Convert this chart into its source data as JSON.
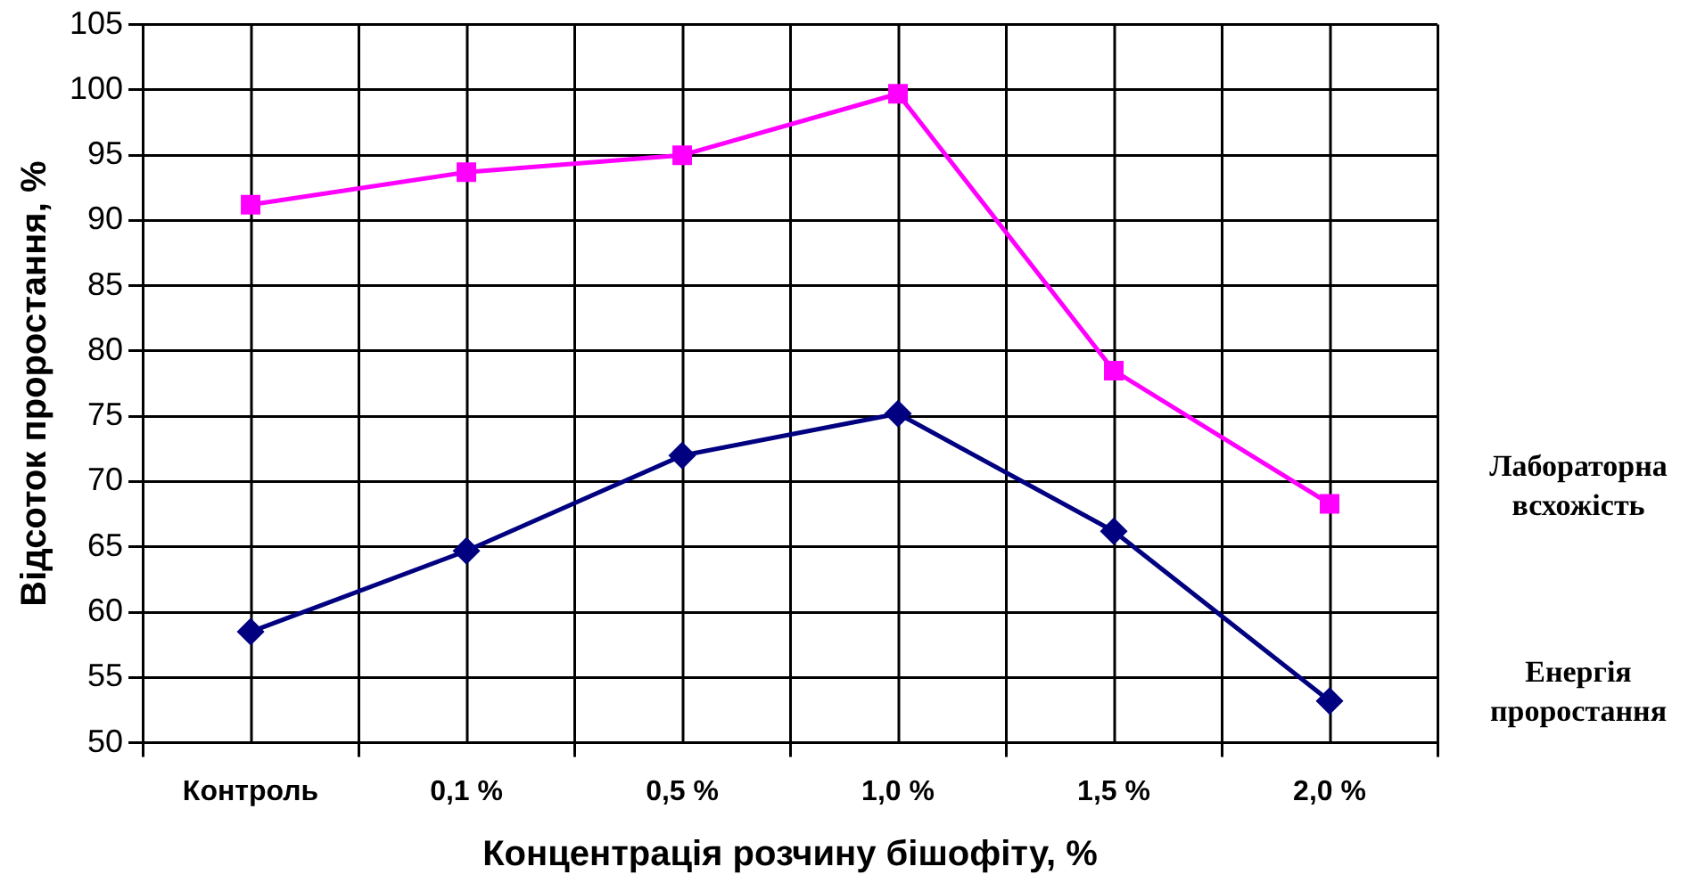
{
  "chart_data": {
    "type": "line",
    "xlabel": "Концентрація розчину бішофіту, %",
    "ylabel": "Відсоток проростання, %",
    "categories": [
      "Контроль",
      "0,1 %",
      "0,5 %",
      "1,0 %",
      "1,5 %",
      "2,0 %"
    ],
    "series": [
      {
        "name": "Лабораторна всхожість",
        "color": "#ff00ff",
        "marker": "square",
        "values": [
          91.2,
          93.7,
          95.0,
          99.7,
          78.5,
          68.3
        ]
      },
      {
        "name": "Енергія проростання",
        "color": "#000080",
        "marker": "diamond",
        "values": [
          58.5,
          64.7,
          72.0,
          75.2,
          66.2,
          53.2
        ]
      }
    ],
    "ylim": [
      50,
      105
    ],
    "yticks": [
      50,
      55,
      60,
      65,
      70,
      75,
      80,
      85,
      90,
      95,
      100,
      105
    ],
    "grid": true,
    "legend": false
  }
}
